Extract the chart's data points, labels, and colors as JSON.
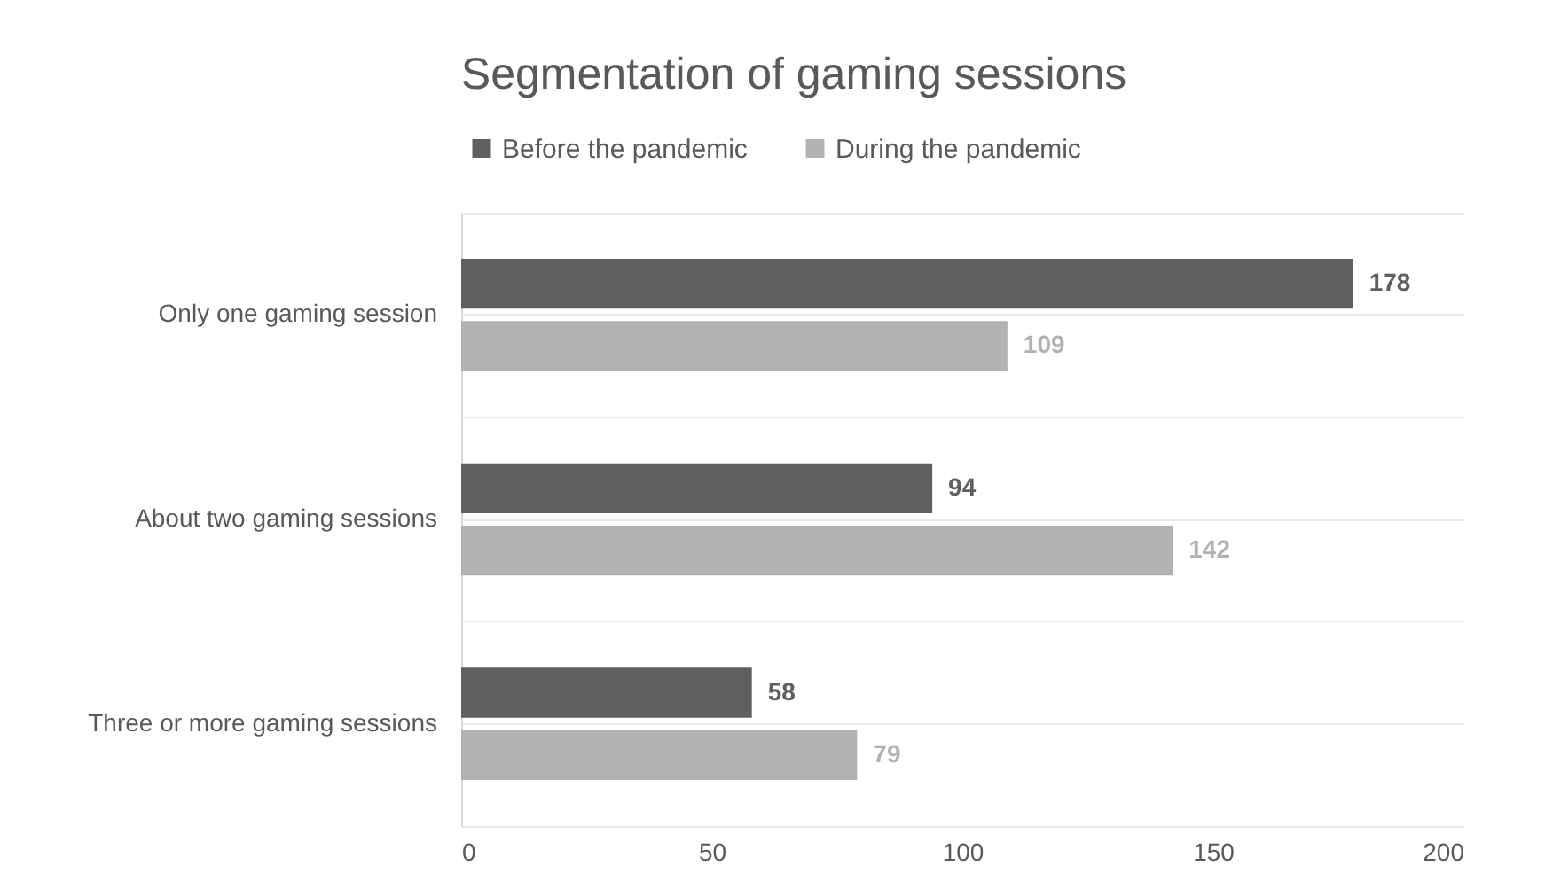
{
  "chart_data": {
    "type": "bar",
    "orientation": "horizontal",
    "title": "Segmentation of gaming sessions",
    "categories": [
      "Only one gaming session",
      "About two gaming sessions",
      "Three or more gaming sessions"
    ],
    "series": [
      {
        "name": "Before the pandemic",
        "color": "#5f5f5f",
        "values": [
          178,
          94,
          58
        ]
      },
      {
        "name": "During the pandemic",
        "color": "#b2b2b2",
        "values": [
          109,
          142,
          79
        ]
      }
    ],
    "xlim": [
      0,
      200
    ],
    "xticks": [
      0,
      50,
      100,
      150,
      200
    ],
    "grid": "y",
    "legend": "top",
    "data_labels": true
  }
}
